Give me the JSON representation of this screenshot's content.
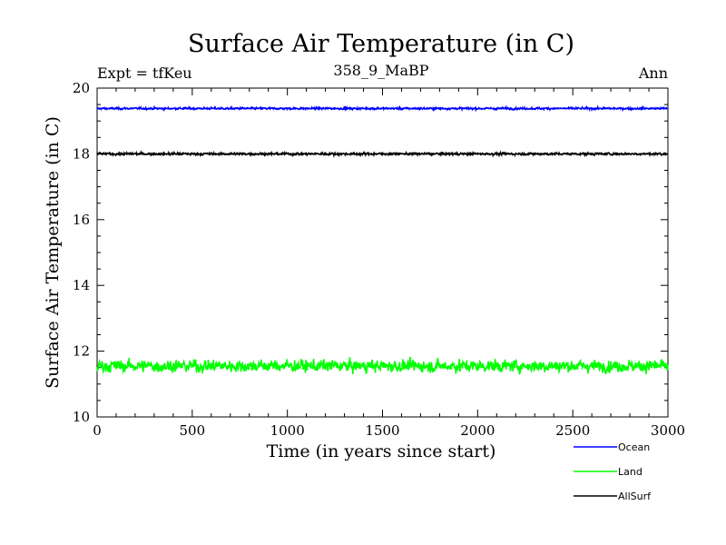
{
  "chart_data": {
    "type": "line",
    "title": "Surface Air Temperature (in C)",
    "subtitle_left": "Expt = tfKeu",
    "subtitle_center": "358_9_MaBP",
    "subtitle_right": "Ann",
    "xlabel": "Time (in years since start)",
    "ylabel": "Surface Air Temperature (in C)",
    "xlim": [
      0,
      3000
    ],
    "ylim": [
      10,
      20
    ],
    "xticks": [
      0,
      500,
      1000,
      1500,
      2000,
      2500,
      3000
    ],
    "yticks": [
      10,
      12,
      14,
      16,
      18,
      20
    ],
    "grid": false,
    "legend_position": "bottom-right, below plot",
    "series": [
      {
        "name": "Ocean",
        "color": "#0000ff",
        "mean": 19.38,
        "range": [
          19.3,
          19.48
        ],
        "values_note": "annual values fluctuating around mean"
      },
      {
        "name": "Land",
        "color": "#00ff00",
        "mean": 11.55,
        "range": [
          10.9,
          12.15
        ],
        "values_note": "annual values fluctuating around mean"
      },
      {
        "name": "AllSurf",
        "color": "#000000",
        "mean": 18.0,
        "range": [
          17.88,
          18.12
        ],
        "values_note": "annual values fluctuating around mean"
      }
    ]
  }
}
